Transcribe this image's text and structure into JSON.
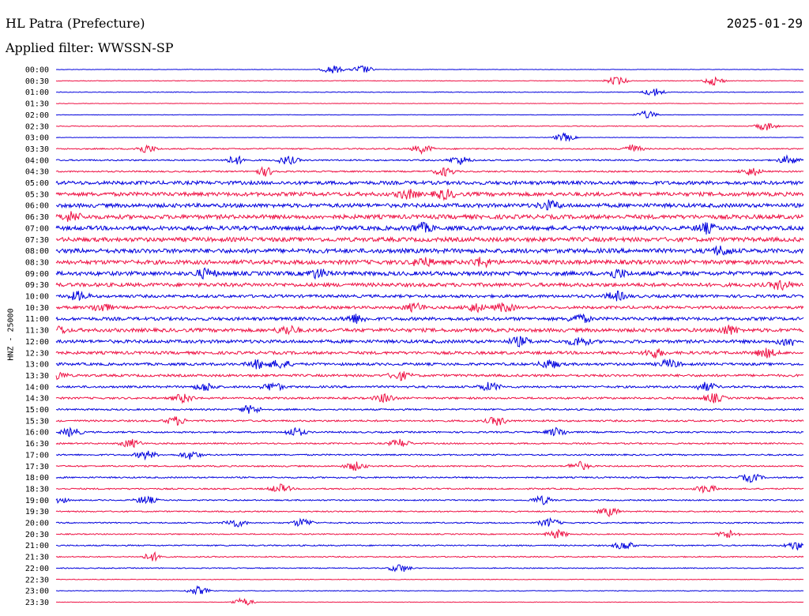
{
  "header": {
    "station": "HL Patra (Prefecture)",
    "date": "2025-01-29",
    "filter": "Applied filter: WWSSN-SP"
  },
  "colors": {
    "even": "#0000dd",
    "odd": "#ee1144"
  },
  "chart_data": {
    "type": "line",
    "title": "HL Patra (Prefecture)",
    "ylabel": "HNZ - 25000",
    "tick_labels": [
      "00:00",
      "00:30",
      "01:00",
      "01:30",
      "02:00",
      "02:30",
      "03:00",
      "03:30",
      "04:00",
      "04:30",
      "05:00",
      "05:30",
      "06:00",
      "06:30",
      "07:00",
      "07:30",
      "08:00",
      "08:30",
      "09:00",
      "09:30",
      "10:00",
      "10:30",
      "11:00",
      "11:30",
      "12:00",
      "12:30",
      "13:00",
      "13:30",
      "14:00",
      "14:30",
      "15:00",
      "15:30",
      "16:00",
      "16:30",
      "17:00",
      "17:30",
      "18:00",
      "18:30",
      "19:00",
      "19:30",
      "20:00",
      "20:30",
      "21:00",
      "21:30",
      "22:00",
      "22:30",
      "23:00",
      "23:30"
    ],
    "series": [
      {
        "time": "00:00",
        "noise": 0.3,
        "events": [
          0.37,
          0.41
        ]
      },
      {
        "time": "00:30",
        "noise": 0.4,
        "events": [
          0.75,
          0.88
        ]
      },
      {
        "time": "01:00",
        "noise": 0.4,
        "events": [
          0.8
        ]
      },
      {
        "time": "01:30",
        "noise": 0.3,
        "events": []
      },
      {
        "time": "02:00",
        "noise": 0.3,
        "events": [
          0.79
        ]
      },
      {
        "time": "02:30",
        "noise": 0.5,
        "events": [
          0.95
        ]
      },
      {
        "time": "03:00",
        "noise": 0.3,
        "events": [
          0.68
        ]
      },
      {
        "time": "03:30",
        "noise": 0.8,
        "events": [
          0.12,
          0.49,
          0.77
        ]
      },
      {
        "time": "04:00",
        "noise": 0.9,
        "events": [
          0.24,
          0.31,
          0.54,
          0.98
        ]
      },
      {
        "time": "04:30",
        "noise": 0.9,
        "events": [
          0.28,
          0.52,
          0.93
        ]
      },
      {
        "time": "05:00",
        "noise": 2.2,
        "events": []
      },
      {
        "time": "05:30",
        "noise": 2.4,
        "events": [
          0.47,
          0.52
        ]
      },
      {
        "time": "06:00",
        "noise": 2.4,
        "events": [
          0.66
        ]
      },
      {
        "time": "06:30",
        "noise": 2.6,
        "events": [
          0.02
        ]
      },
      {
        "time": "07:00",
        "noise": 2.6,
        "events": [
          0.49,
          0.87
        ]
      },
      {
        "time": "07:30",
        "noise": 2.6,
        "events": []
      },
      {
        "time": "08:00",
        "noise": 2.7,
        "events": [
          0.89
        ]
      },
      {
        "time": "08:30",
        "noise": 2.6,
        "events": [
          0.49,
          0.57
        ]
      },
      {
        "time": "09:00",
        "noise": 2.5,
        "events": [
          0.2,
          0.35,
          0.75
        ]
      },
      {
        "time": "09:30",
        "noise": 2.3,
        "events": [
          0.97
        ]
      },
      {
        "time": "10:00",
        "noise": 1.8,
        "events": [
          0.03,
          0.75
        ]
      },
      {
        "time": "10:30",
        "noise": 1.7,
        "events": [
          0.06,
          0.48,
          0.56,
          0.6
        ]
      },
      {
        "time": "11:00",
        "noise": 2.0,
        "events": [
          0.4,
          0.7
        ]
      },
      {
        "time": "11:30",
        "noise": 2.2,
        "events": [
          0.0,
          0.31,
          0.9
        ]
      },
      {
        "time": "12:00",
        "noise": 2.0,
        "events": [
          0.62,
          0.7,
          0.98
        ]
      },
      {
        "time": "12:30",
        "noise": 1.8,
        "events": [
          0.8,
          0.95
        ]
      },
      {
        "time": "13:00",
        "noise": 1.6,
        "events": [
          0.27,
          0.3,
          0.66,
          0.82
        ]
      },
      {
        "time": "13:30",
        "noise": 1.5,
        "events": [
          0.0,
          0.46
        ]
      },
      {
        "time": "14:00",
        "noise": 1.3,
        "events": [
          0.2,
          0.29,
          0.58,
          0.87
        ]
      },
      {
        "time": "14:30",
        "noise": 1.2,
        "events": [
          0.17,
          0.44,
          0.88
        ]
      },
      {
        "time": "15:00",
        "noise": 1.0,
        "events": [
          0.26
        ]
      },
      {
        "time": "15:30",
        "noise": 1.1,
        "events": [
          0.16,
          0.59
        ]
      },
      {
        "time": "16:00",
        "noise": 1.0,
        "events": [
          0.02,
          0.32,
          0.67
        ]
      },
      {
        "time": "16:30",
        "noise": 0.9,
        "events": [
          0.1,
          0.46
        ]
      },
      {
        "time": "17:00",
        "noise": 0.9,
        "events": [
          0.12,
          0.18
        ]
      },
      {
        "time": "17:30",
        "noise": 0.9,
        "events": [
          0.4,
          0.7
        ]
      },
      {
        "time": "18:00",
        "noise": 0.9,
        "events": [
          0.93
        ]
      },
      {
        "time": "18:30",
        "noise": 0.9,
        "events": [
          0.3,
          0.87
        ]
      },
      {
        "time": "19:00",
        "noise": 0.8,
        "events": [
          0.0,
          0.12,
          0.65
        ]
      },
      {
        "time": "19:30",
        "noise": 0.8,
        "events": [
          0.74
        ]
      },
      {
        "time": "20:00",
        "noise": 0.8,
        "events": [
          0.24,
          0.33,
          0.66
        ]
      },
      {
        "time": "20:30",
        "noise": 0.7,
        "events": [
          0.67,
          0.9
        ]
      },
      {
        "time": "21:00",
        "noise": 0.8,
        "events": [
          0.76,
          0.99
        ]
      },
      {
        "time": "21:30",
        "noise": 0.7,
        "events": [
          0.13
        ]
      },
      {
        "time": "22:00",
        "noise": 0.6,
        "events": [
          0.46
        ]
      },
      {
        "time": "22:30",
        "noise": 0.4,
        "events": []
      },
      {
        "time": "23:00",
        "noise": 0.4,
        "events": [
          0.19
        ]
      },
      {
        "time": "23:30",
        "noise": 0.3,
        "events": [
          0.25
        ]
      }
    ]
  }
}
